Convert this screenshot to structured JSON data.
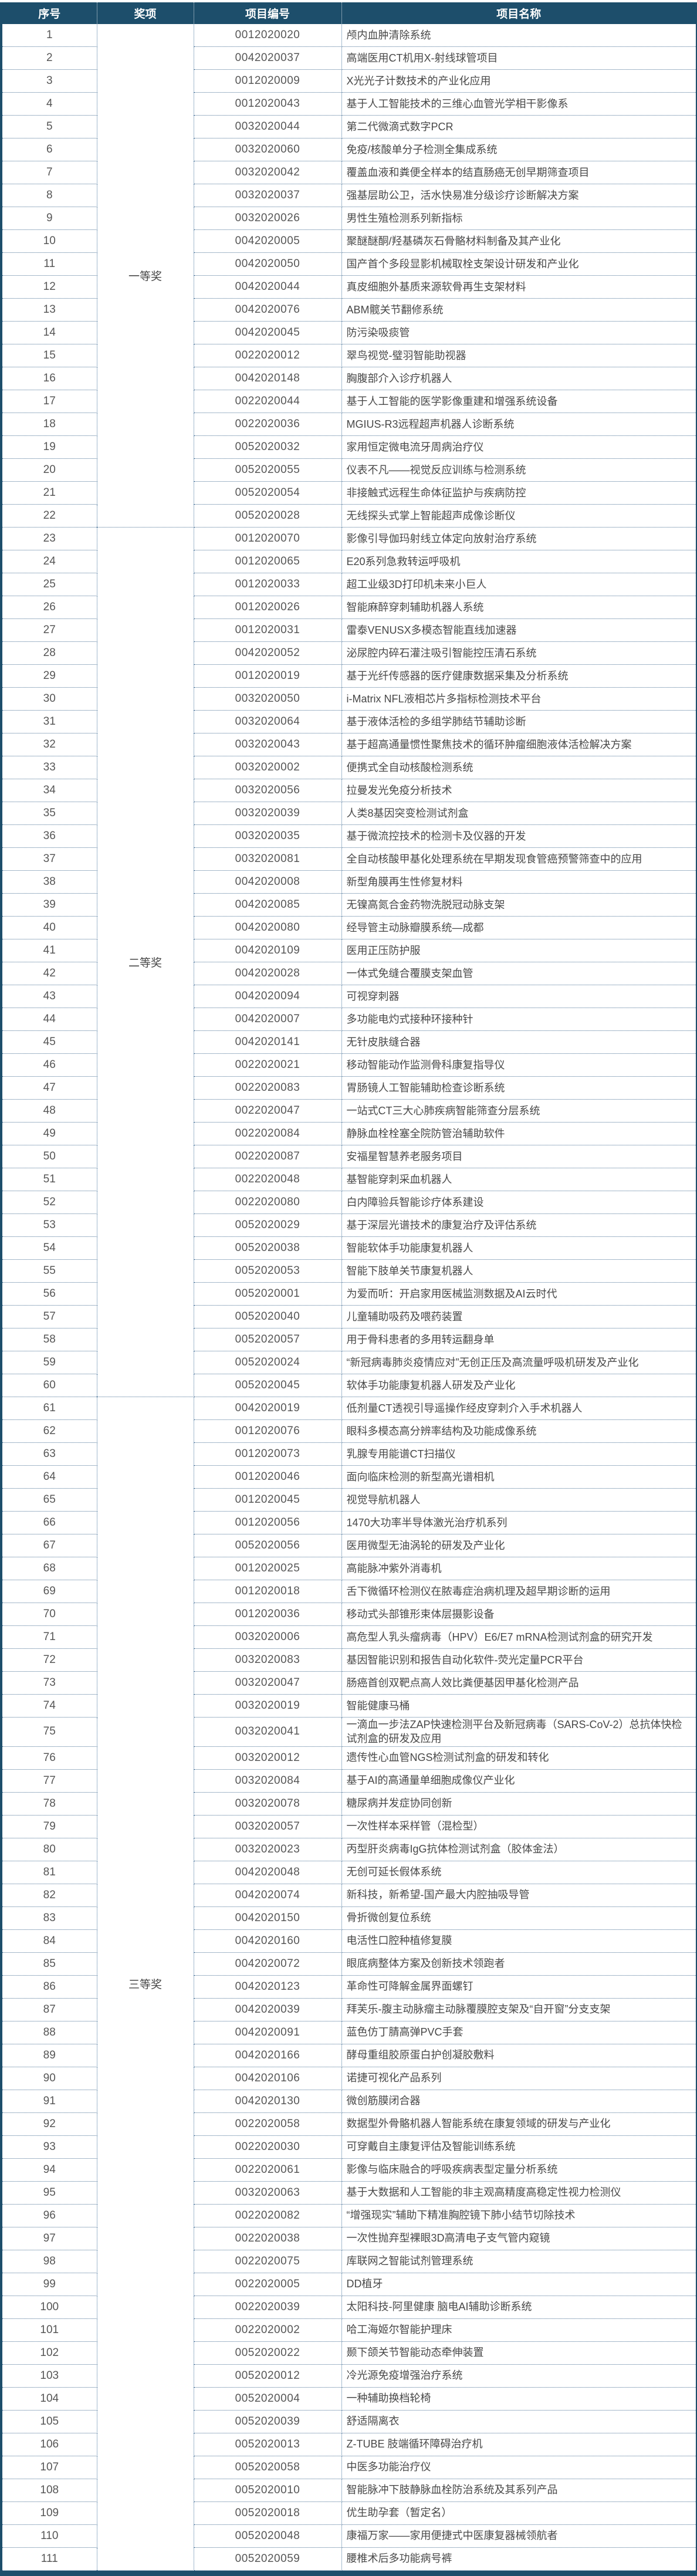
{
  "header": {
    "columns": [
      "序号",
      "奖项",
      "项目编号",
      "项目名称"
    ]
  },
  "colors": {
    "header_bg": "#1d4e6b",
    "header_text": "#ffffff",
    "frame_border": "#1d4e6b",
    "row_divider": "#4d7396",
    "column_divider": "#48759e",
    "body_text": "#484848"
  },
  "awards": [
    {
      "label": "一等奖",
      "from": 1,
      "to": 22
    },
    {
      "label": "二等奖",
      "from": 23,
      "to": 60
    },
    {
      "label": "三等奖",
      "from": 61,
      "to": 111
    }
  ],
  "rows": [
    {
      "no": 1,
      "code": "0012020020",
      "name": "颅内血肿清除系统"
    },
    {
      "no": 2,
      "code": "0042020037",
      "name": "高端医用CT机用X-射线球管项目"
    },
    {
      "no": 3,
      "code": "0012020009",
      "name": "X光光子计数技术的产业化应用"
    },
    {
      "no": 4,
      "code": "0012020043",
      "name": "基于人工智能技术的三维心血管光学相干影像系"
    },
    {
      "no": 5,
      "code": "0032020044",
      "name": "第二代微滴式数字PCR"
    },
    {
      "no": 6,
      "code": "0032020060",
      "name": "免疫/核酸单分子检测全集成系统"
    },
    {
      "no": 7,
      "code": "0032020042",
      "name": "覆盖血液和粪便全样本的结直肠癌无创早期筛查项目"
    },
    {
      "no": 8,
      "code": "0032020037",
      "name": "强基层助公卫，活水快易准分级诊疗诊断解决方案"
    },
    {
      "no": 9,
      "code": "0032020026",
      "name": "男性生殖检测系列新指标"
    },
    {
      "no": 10,
      "code": "0042020005",
      "name": "聚醚醚酮/羟基磷灰石骨骼材料制备及其产业化"
    },
    {
      "no": 11,
      "code": "0042020050",
      "name": "国产首个多段显影机械取栓支架设计研发和产业化"
    },
    {
      "no": 12,
      "code": "0042020044",
      "name": "真皮细胞外基质来源软骨再生支架材料"
    },
    {
      "no": 13,
      "code": "0042020076",
      "name": "ABM髋关节翻修系统"
    },
    {
      "no": 14,
      "code": "0042020045",
      "name": "防污染吸痰管"
    },
    {
      "no": 15,
      "code": "0022020012",
      "name": "翠鸟视觉-璧羽智能助视器"
    },
    {
      "no": 16,
      "code": "0042020148",
      "name": "胸腹部介入诊疗机器人"
    },
    {
      "no": 17,
      "code": "0022020044",
      "name": "基于人工智能的医学影像重建和增强系统设备"
    },
    {
      "no": 18,
      "code": "0022020036",
      "name": "MGIUS-R3远程超声机器人诊断系统"
    },
    {
      "no": 19,
      "code": "0052020032",
      "name": "家用恒定微电流牙周病治疗仪"
    },
    {
      "no": 20,
      "code": "0052020055",
      "name": "仪表不凡——视觉反应训练与检测系统"
    },
    {
      "no": 21,
      "code": "0052020054",
      "name": "非接触式远程生命体征监护与疾病防控"
    },
    {
      "no": 22,
      "code": "0052020028",
      "name": "无线探头式掌上智能超声成像诊断仪"
    },
    {
      "no": 23,
      "code": "0012020070",
      "name": "影像引导伽玛射线立体定向放射治疗系统"
    },
    {
      "no": 24,
      "code": "0012020065",
      "name": "E20系列急救转运呼吸机"
    },
    {
      "no": 25,
      "code": "0012020033",
      "name": "超工业级3D打印机未来小巨人"
    },
    {
      "no": 26,
      "code": "0012020026",
      "name": "智能麻醉穿刺辅助机器人系统"
    },
    {
      "no": 27,
      "code": "0012020031",
      "name": "雷泰VENUSX多模态智能直线加速器"
    },
    {
      "no": 28,
      "code": "0042020052",
      "name": "泌尿腔内碎石灌注吸引智能控压清石系统"
    },
    {
      "no": 29,
      "code": "0012020019",
      "name": "基于光纤传感器的医疗健康数据采集及分析系统"
    },
    {
      "no": 30,
      "code": "0032020050",
      "name": "i-Matrix NFL液相芯片多指标检测技术平台"
    },
    {
      "no": 31,
      "code": "0032020064",
      "name": "基于液体活检的多组学肺结节辅助诊断"
    },
    {
      "no": 32,
      "code": "0032020043",
      "name": "基于超高通量惯性聚焦技术的循环肿瘤细胞液体活检解决方案"
    },
    {
      "no": 33,
      "code": "0032020002",
      "name": "便携式全自动核酸检测系统"
    },
    {
      "no": 34,
      "code": "0032020056",
      "name": "拉曼发光免疫分析技术"
    },
    {
      "no": 35,
      "code": "0032020039",
      "name": "人类8基因突变检测试剂盒"
    },
    {
      "no": 36,
      "code": "0032020035",
      "name": "基于微流控技术的检测卡及仪器的开发"
    },
    {
      "no": 37,
      "code": "0032020081",
      "name": "全自动核酸甲基化处理系统在早期发现食管癌预警筛查中的应用"
    },
    {
      "no": 38,
      "code": "0042020008",
      "name": "新型角膜再生性修复材料"
    },
    {
      "no": 39,
      "code": "0042020085",
      "name": "无镍高氮合金药物洗脱冠动脉支架"
    },
    {
      "no": 40,
      "code": "0042020080",
      "name": "经导管主动脉瓣膜系统—成都"
    },
    {
      "no": 41,
      "code": "0042020109",
      "name": "医用正压防护服"
    },
    {
      "no": 42,
      "code": "0042020028",
      "name": "一体式免缝合覆膜支架血管"
    },
    {
      "no": 43,
      "code": "0042020094",
      "name": "可视穿刺器"
    },
    {
      "no": 44,
      "code": "0042020007",
      "name": "多功能电灼式接种环接种针"
    },
    {
      "no": 45,
      "code": "0042020141",
      "name": "无针皮肤缝合器"
    },
    {
      "no": 46,
      "code": "0022020021",
      "name": "移动智能动作监测骨科康复指导仪"
    },
    {
      "no": 47,
      "code": "0022020083",
      "name": "胃肠镜人工智能辅助检查诊断系统"
    },
    {
      "no": 48,
      "code": "0022020047",
      "name": "一站式CT三大心肺疾病智能筛查分层系统"
    },
    {
      "no": 49,
      "code": "0022020084",
      "name": "静脉血栓栓塞全院防管治辅助软件"
    },
    {
      "no": 50,
      "code": "0022020087",
      "name": "安福星智慧养老服务项目"
    },
    {
      "no": 51,
      "code": "0022020048",
      "name": "基智能穿刺采血机器人"
    },
    {
      "no": 52,
      "code": "0022020080",
      "name": "白内障验兵智能诊疗体系建设"
    },
    {
      "no": 53,
      "code": "0052020029",
      "name": "基于深层光谱技术的康复治疗及评估系统"
    },
    {
      "no": 54,
      "code": "0052020038",
      "name": "智能软体手功能康复机器人"
    },
    {
      "no": 55,
      "code": "0052020053",
      "name": "智能下肢单关节康复机器人"
    },
    {
      "no": 56,
      "code": "0052020001",
      "name": "为爱而听：开启家用医械监测数据及AI云时代"
    },
    {
      "no": 57,
      "code": "0052020040",
      "name": "儿童辅助吸药及喂药装置"
    },
    {
      "no": 58,
      "code": "0052020057",
      "name": "用于骨科患者的多用转运翻身单"
    },
    {
      "no": 59,
      "code": "0052020024",
      "name": "“新冠病毒肺炎疫情应对”无创正压及高流量呼吸机研发及产业化"
    },
    {
      "no": 60,
      "code": "0052020045",
      "name": "软体手功能康复机器人研发及产业化"
    },
    {
      "no": 61,
      "code": "0042020019",
      "name": "低剂量CT透视引导遥操作经皮穿刺介入手术机器人"
    },
    {
      "no": 62,
      "code": "0012020076",
      "name": "眼科多模态高分辨率结构及功能成像系统"
    },
    {
      "no": 63,
      "code": "0012020073",
      "name": "乳腺专用能谱CT扫描仪"
    },
    {
      "no": 64,
      "code": "0012020046",
      "name": "面向临床检测的新型高光谱相机"
    },
    {
      "no": 65,
      "code": "0012020045",
      "name": "视觉导航机器人"
    },
    {
      "no": 66,
      "code": "0012020056",
      "name": "1470大功率半导体激光治疗机系列"
    },
    {
      "no": 67,
      "code": "0052020056",
      "name": "医用微型无油涡轮的研发及产业化"
    },
    {
      "no": 68,
      "code": "0012020025",
      "name": "高能脉冲紫外消毒机"
    },
    {
      "no": 69,
      "code": "0012020018",
      "name": "舌下微循环检测仪在脓毒症治病机理及超早期诊断的运用"
    },
    {
      "no": 70,
      "code": "0012020036",
      "name": "移动式头部锥形束体层摄影设备"
    },
    {
      "no": 71,
      "code": "0032020006",
      "name": "高危型人乳头瘤病毒（HPV）E6/E7 mRNA检测试剂盒的研究开发"
    },
    {
      "no": 72,
      "code": "0032020083",
      "name": "基因智能识别和报告自动化软件-荧光定量PCR平台"
    },
    {
      "no": 73,
      "code": "0032020047",
      "name": "肠癌首创双靶点高人效比粪便基因甲基化检测产品"
    },
    {
      "no": 74,
      "code": "0032020019",
      "name": "智能健康马桶"
    },
    {
      "no": 75,
      "code": "0032020041",
      "name": "一滴血一步法ZAP快速检测平台及新冠病毒（SARS-CoV-2）总抗体快检试剂盒的研发及应用"
    },
    {
      "no": 76,
      "code": "0032020012",
      "name": "遗传性心血管NGS检测试剂盒的研发和转化"
    },
    {
      "no": 77,
      "code": "0032020084",
      "name": "基于AI的高通量单细胞成像仪产业化"
    },
    {
      "no": 78,
      "code": "0032020078",
      "name": "糖尿病并发症协同创新"
    },
    {
      "no": 79,
      "code": "0032020057",
      "name": "一次性样本采样管（混检型）"
    },
    {
      "no": 80,
      "code": "0032020023",
      "name": "丙型肝炎病毒IgG抗体检测试剂盒（胶体金法）"
    },
    {
      "no": 81,
      "code": "0042020048",
      "name": "无创可延长假体系统"
    },
    {
      "no": 82,
      "code": "0042020074",
      "name": "新科技，新希望-国产最大内腔抽吸导管"
    },
    {
      "no": 83,
      "code": "0042020150",
      "name": "骨折微创复位系统"
    },
    {
      "no": 84,
      "code": "0042020160",
      "name": "电活性口腔种植修复膜"
    },
    {
      "no": 85,
      "code": "0042020072",
      "name": "眼底病整体方案及创新技术领跑者"
    },
    {
      "no": 86,
      "code": "0042020123",
      "name": "革命性可降解金属界面螺钉"
    },
    {
      "no": 87,
      "code": "0042020039",
      "name": "拜芙乐-腹主动脉瘤主动脉覆膜腔支架及“自开窗”分支支架"
    },
    {
      "no": 88,
      "code": "0042020091",
      "name": "蓝色仿丁腈高弹PVC手套"
    },
    {
      "no": 89,
      "code": "0042020166",
      "name": "酵母重组胶原蛋白护创凝胶敷料"
    },
    {
      "no": 90,
      "code": "0042020106",
      "name": "诺捷可视化产品系列"
    },
    {
      "no": 91,
      "code": "0042020130",
      "name": "微创筋膜闭合器"
    },
    {
      "no": 92,
      "code": "0022020058",
      "name": "数据型外骨骼机器人智能系统在康复领域的研发与产业化"
    },
    {
      "no": 93,
      "code": "0022020030",
      "name": "可穿戴自主康复评估及智能训练系统"
    },
    {
      "no": 94,
      "code": "0022020061",
      "name": "影像与临床融合的呼吸疾病表型定量分析系统"
    },
    {
      "no": 95,
      "code": "0032020063",
      "name": "基于大数据和人工智能的非主观高精度高稳定性视力检测仪"
    },
    {
      "no": 96,
      "code": "0022020082",
      "name": "“增强现实”辅助下精准胸腔镜下肺小结节切除技术"
    },
    {
      "no": 97,
      "code": "0022020038",
      "name": "一次性抛弃型裸眼3D高清电子支气管内窥镜"
    },
    {
      "no": 98,
      "code": "0022020075",
      "name": "库联网之智能试剂管理系统"
    },
    {
      "no": 99,
      "code": "0022020005",
      "name": "DD植牙"
    },
    {
      "no": 100,
      "code": "0022020039",
      "name": "太阳科技-阿里健康 脑电AI辅助诊断系统"
    },
    {
      "no": 101,
      "code": "0022020002",
      "name": "哈工海姬尔智能护理床"
    },
    {
      "no": 102,
      "code": "0052020022",
      "name": "颞下颌关节智能动态牵伸装置"
    },
    {
      "no": 103,
      "code": "0052020012",
      "name": "冷光源免疫增强治疗系统"
    },
    {
      "no": 104,
      "code": "0052020004",
      "name": "一种辅助换档轮椅"
    },
    {
      "no": 105,
      "code": "0052020039",
      "name": "舒适隔离衣"
    },
    {
      "no": 106,
      "code": "0052020013",
      "name": "Z-TUBE 肢端循环障碍治疗机"
    },
    {
      "no": 107,
      "code": "0052020058",
      "name": "中医多功能治疗仪"
    },
    {
      "no": 108,
      "code": "0052020010",
      "name": "智能脉冲下肢静脉血栓防治系统及其系列产品"
    },
    {
      "no": 109,
      "code": "0052020018",
      "name": "优生助孕套（暂定名）"
    },
    {
      "no": 110,
      "code": "0052020048",
      "name": "康福万家——家用便捷式中医康复器械领航者"
    },
    {
      "no": 111,
      "code": "0052020059",
      "name": "腰椎术后多功能病号裤"
    }
  ]
}
